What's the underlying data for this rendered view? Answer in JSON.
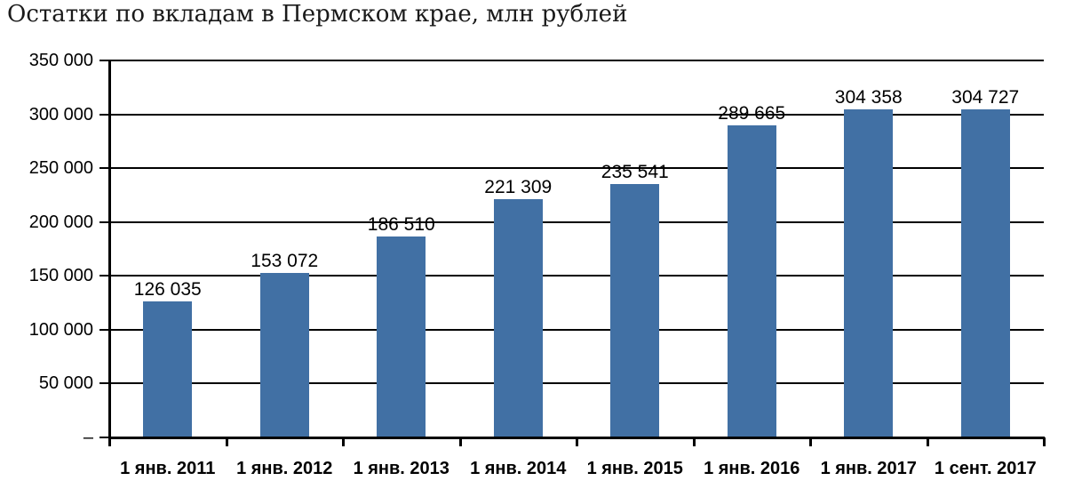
{
  "chart_data": {
    "type": "bar",
    "title": "Остатки по вкладам в Пермском крае, млн рублей",
    "categories": [
      "1 янв. 2011",
      "1 янв. 2012",
      "1 янв. 2013",
      "1 янв. 2014",
      "1 янв. 2015",
      "1 янв. 2016",
      "1 янв. 2017",
      "1 сент. 2017"
    ],
    "values": [
      126035,
      153072,
      186510,
      221309,
      235541,
      289665,
      304358,
      304727
    ],
    "value_labels": [
      "126 035",
      "153 072",
      "186 510",
      "221 309",
      "235 541",
      "289 665",
      "304 358",
      "304 727"
    ],
    "y_ticks": [
      {
        "value": 0,
        "label": "–"
      },
      {
        "value": 50000,
        "label": "50 000"
      },
      {
        "value": 100000,
        "label": "100 000"
      },
      {
        "value": 150000,
        "label": "150 000"
      },
      {
        "value": 200000,
        "label": "200 000"
      },
      {
        "value": 250000,
        "label": "250 000"
      },
      {
        "value": 300000,
        "label": "300 000"
      },
      {
        "value": 350000,
        "label": "350 000"
      }
    ],
    "ylim": [
      0,
      350000
    ],
    "xlabel": "",
    "ylabel": "",
    "grid": "horizontal",
    "legend": "none",
    "bar_color": "#4170A4"
  },
  "colors": {
    "bar": "#4170A4",
    "axis": "#000000",
    "text": "#000000",
    "background": "#FFFFFF"
  }
}
